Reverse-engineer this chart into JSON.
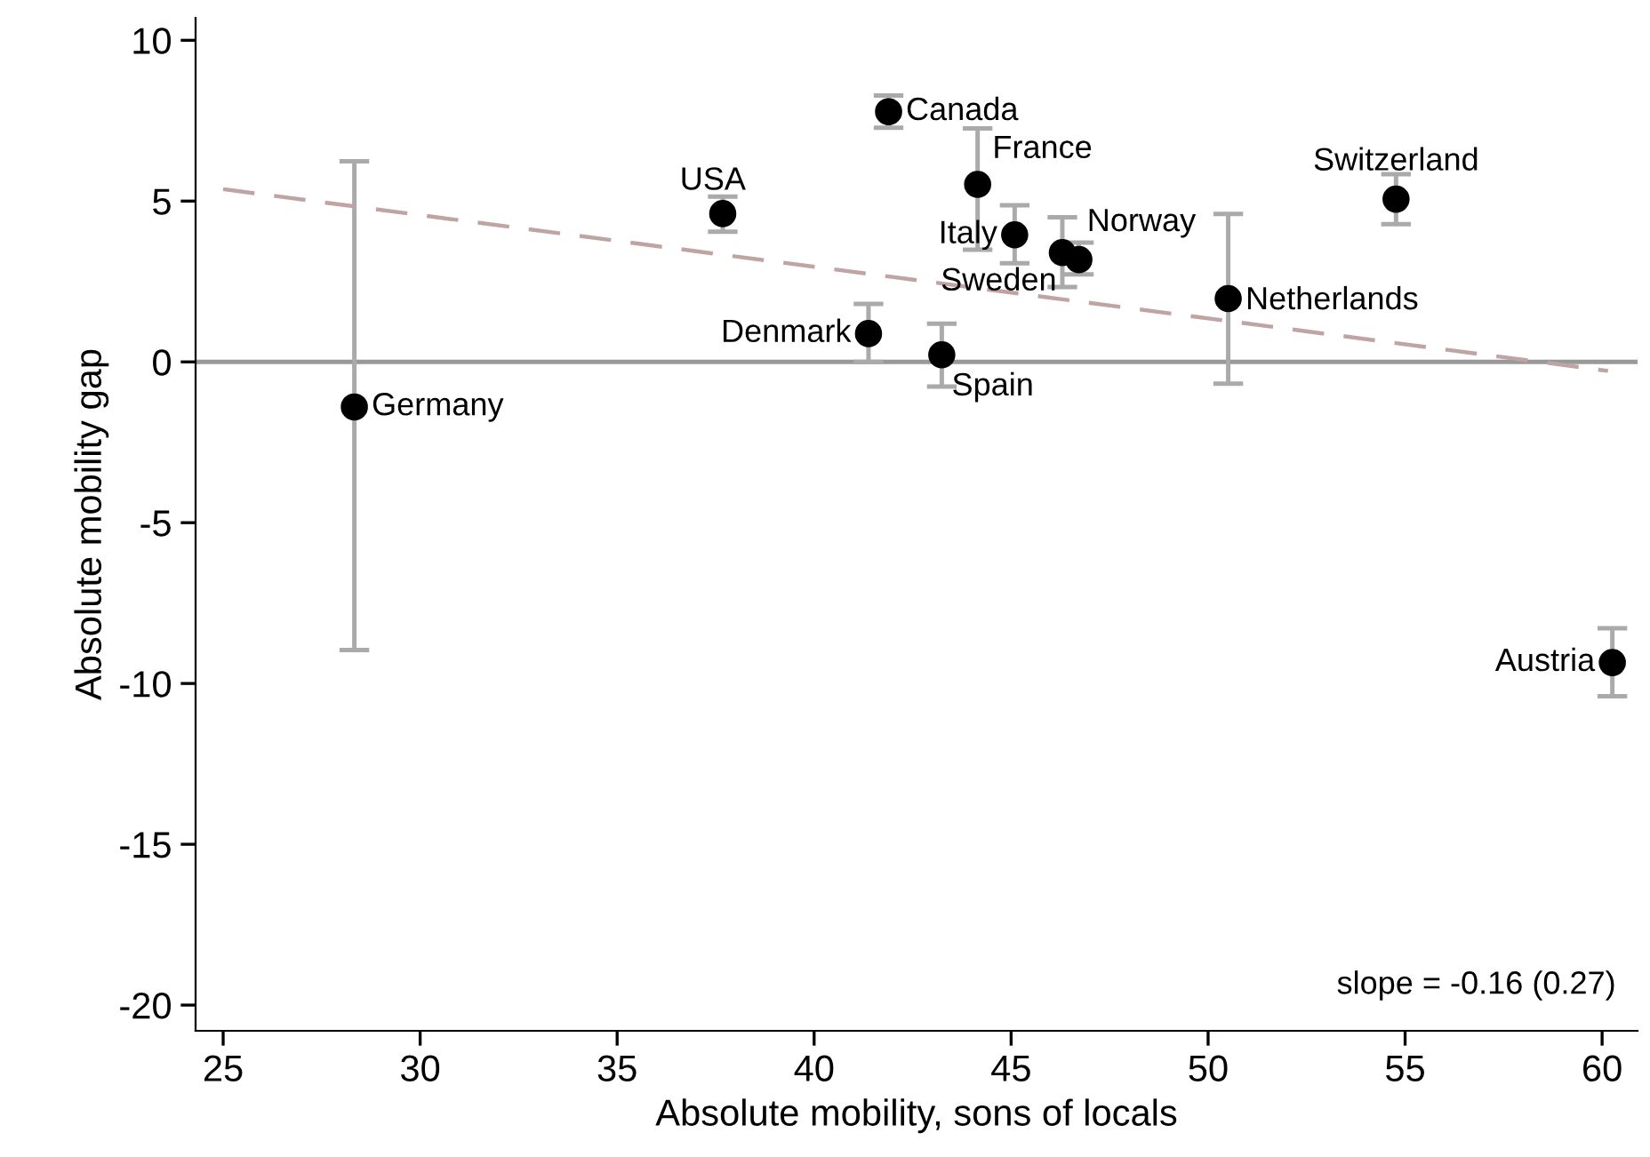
{
  "chart_data": {
    "type": "scatter",
    "xlabel": "Absolute mobility, sons of locals",
    "ylabel": "Absolute mobility gap",
    "xlim": [
      24.3,
      60.9
    ],
    "ylim": [
      -20.8,
      10.7
    ],
    "xticks": [
      25,
      30,
      35,
      40,
      45,
      50,
      55,
      60
    ],
    "yticks": [
      -20,
      -15,
      -10,
      -5,
      0,
      5,
      10
    ],
    "grid": false,
    "legend": false,
    "series": [
      {
        "color": "#000000",
        "marker": "circle",
        "x": [
          28.33,
          37.68,
          41.89,
          41.38,
          43.24,
          44.15,
          45.09,
          46.3,
          46.72,
          50.51,
          54.77,
          60.26
        ],
        "values": [
          -1.4,
          4.61,
          7.78,
          0.88,
          0.22,
          5.52,
          3.95,
          3.4,
          3.18,
          1.97,
          5.06,
          -9.35
        ],
        "errors": [
          [
            -8.96,
            6.24
          ],
          [
            4.05,
            5.14
          ],
          [
            7.28,
            8.28
          ],
          [
            0.0,
            1.8
          ],
          [
            -0.77,
            1.19
          ],
          [
            3.49,
            7.26
          ],
          [
            3.07,
            4.87
          ],
          [
            2.33,
            4.5
          ],
          [
            2.72,
            3.71
          ],
          [
            -0.68,
            4.6
          ],
          [
            4.28,
            5.84
          ],
          [
            -10.4,
            -8.28
          ]
        ]
      },
      {
        "type": "line",
        "color": "#c0a4a4",
        "line_style": "dashed",
        "marker": "none",
        "x": [
          25,
          60.15
        ],
        "values": [
          5.37,
          -0.28
        ]
      }
    ],
    "ref_lines": [
      {
        "axis": "y",
        "value": 0,
        "color": "#999999"
      }
    ],
    "annotations": [
      {
        "text": "Germany",
        "x": 28.33,
        "y": -1.4
      },
      {
        "text": "USA",
        "x": 37.68,
        "y": 4.61
      },
      {
        "text": "Canada",
        "x": 41.89,
        "y": 7.78
      },
      {
        "text": "Denmark",
        "x": 41.38,
        "y": 0.88
      },
      {
        "text": "Spain",
        "x": 43.24,
        "y": 0.22
      },
      {
        "text": "France",
        "x": 44.15,
        "y": 5.52
      },
      {
        "text": "Italy",
        "x": 45.09,
        "y": 3.95
      },
      {
        "text": "Norway",
        "x": 46.3,
        "y": 3.4
      },
      {
        "text": "Sweden",
        "x": 46.72,
        "y": 3.18
      },
      {
        "text": "Netherlands",
        "x": 50.51,
        "y": 1.97
      },
      {
        "text": "Switzerland",
        "x": 54.77,
        "y": 5.06
      },
      {
        "text": "Austria",
        "x": 60.26,
        "y": -9.35
      },
      "slope = -0.16 (0.27)"
    ]
  }
}
